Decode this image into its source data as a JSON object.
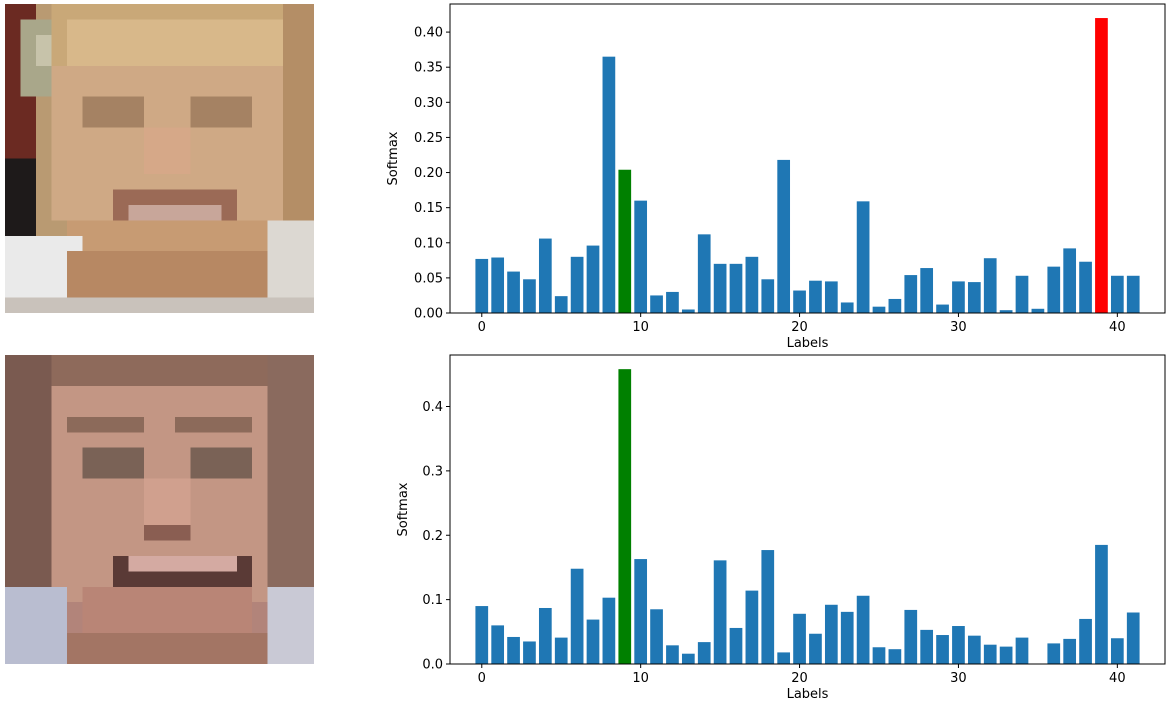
{
  "faces": [
    {
      "name": "face-image-1"
    },
    {
      "name": "face-image-2"
    }
  ],
  "chart_data": [
    {
      "type": "bar",
      "xlabel": "Labels",
      "ylabel": "Softmax",
      "xlim": [
        -2,
        43
      ],
      "ylim": [
        0,
        0.44
      ],
      "xticks": [
        0,
        10,
        20,
        30,
        40
      ],
      "yticks": [
        0.0,
        0.05,
        0.1,
        0.15,
        0.2,
        0.25,
        0.3,
        0.35,
        0.4
      ],
      "ytick_labels": [
        "0.00",
        "0.05",
        "0.10",
        "0.15",
        "0.20",
        "0.25",
        "0.30",
        "0.35",
        "0.40"
      ],
      "x": [
        0,
        1,
        2,
        3,
        4,
        5,
        6,
        7,
        8,
        9,
        10,
        11,
        12,
        13,
        14,
        15,
        16,
        17,
        18,
        19,
        20,
        21,
        22,
        23,
        24,
        25,
        26,
        27,
        28,
        29,
        30,
        31,
        32,
        33,
        34,
        35,
        36,
        37,
        38,
        39,
        40,
        41
      ],
      "values": [
        0.077,
        0.079,
        0.059,
        0.048,
        0.106,
        0.024,
        0.08,
        0.096,
        0.365,
        0.204,
        0.16,
        0.025,
        0.03,
        0.005,
        0.112,
        0.07,
        0.07,
        0.08,
        0.048,
        0.218,
        0.032,
        0.046,
        0.045,
        0.015,
        0.159,
        0.009,
        0.02,
        0.054,
        0.064,
        0.012,
        0.045,
        0.044,
        0.078,
        0.004,
        0.053,
        0.006,
        0.066,
        0.092,
        0.073,
        0.42,
        0.053,
        0.053
      ],
      "default_color": "#1f77b4",
      "highlights": [
        {
          "index": 9,
          "color": "#008000"
        },
        {
          "index": 39,
          "color": "#ff0000"
        }
      ]
    },
    {
      "type": "bar",
      "xlabel": "Labels",
      "ylabel": "Softmax",
      "xlim": [
        -2,
        43
      ],
      "ylim": [
        0,
        0.48
      ],
      "xticks": [
        0,
        10,
        20,
        30,
        40
      ],
      "yticks": [
        0.0,
        0.1,
        0.2,
        0.3,
        0.4
      ],
      "ytick_labels": [
        "0.0",
        "0.1",
        "0.2",
        "0.3",
        "0.4"
      ],
      "x": [
        0,
        1,
        2,
        3,
        4,
        5,
        6,
        7,
        8,
        9,
        10,
        11,
        12,
        13,
        14,
        15,
        16,
        17,
        18,
        19,
        20,
        21,
        22,
        23,
        24,
        25,
        26,
        27,
        28,
        29,
        30,
        31,
        32,
        33,
        34,
        35,
        36,
        37,
        38,
        39,
        40,
        41
      ],
      "values": [
        0.09,
        0.06,
        0.042,
        0.035,
        0.087,
        0.041,
        0.148,
        0.069,
        0.103,
        0.458,
        0.163,
        0.085,
        0.029,
        0.016,
        0.034,
        0.161,
        0.056,
        0.114,
        0.177,
        0.018,
        0.078,
        0.047,
        0.092,
        0.081,
        0.106,
        0.026,
        0.023,
        0.084,
        0.053,
        0.045,
        0.059,
        0.044,
        0.03,
        0.027,
        0.041,
        0.0,
        0.032,
        0.039,
        0.07,
        0.185,
        0.04,
        0.08
      ],
      "default_color": "#1f77b4",
      "highlights": [
        {
          "index": 9,
          "color": "#008000"
        }
      ]
    }
  ]
}
